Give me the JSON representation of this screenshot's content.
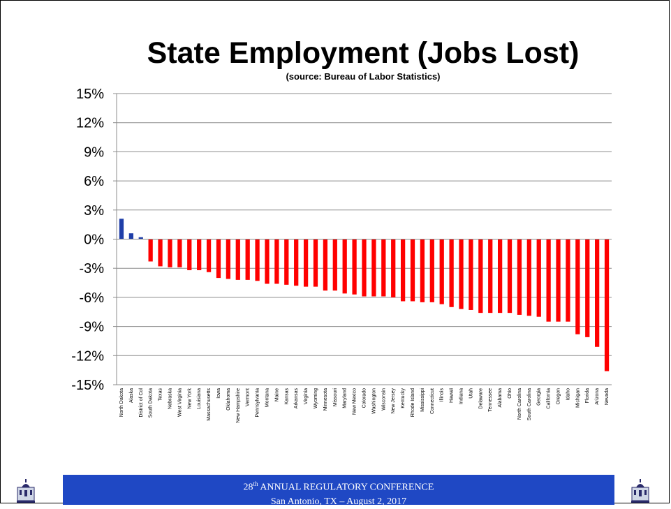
{
  "slide": {
    "title": "State Employment (Jobs Lost)",
    "subtitle": "(source: Bureau of Labor Statistics)"
  },
  "footer": {
    "ordinal_number": "28",
    "ordinal_suffix": "th",
    "line1_rest": " ANNUAL REGULATORY CONFERENCE",
    "line2": "San Antonio, TX – August 2, 2017"
  },
  "colors": {
    "positive_bar": "#1f3ea8",
    "negative_bar": "#ff0000",
    "footer_background": "#1f48c4"
  },
  "chart_data": {
    "type": "bar",
    "ylim": [
      -15,
      15
    ],
    "yticks": [
      15,
      12,
      9,
      6,
      3,
      0,
      -3,
      -6,
      -9,
      -12,
      -15
    ],
    "ytick_labels": [
      "15%",
      "12%",
      "9%",
      "6%",
      "3%",
      "0%",
      "-3%",
      "-6%",
      "-9%",
      "-12%",
      "-15%"
    ],
    "grid": true,
    "categories": [
      "North Dakota",
      "Alaska",
      "District of Col",
      "South Dakota",
      "Texas",
      "Nebraska",
      "West Virginia",
      "New York",
      "Louisiana",
      "Massachusetts",
      "Iowa",
      "Oklahoma",
      "New Hampshire",
      "Vermont",
      "Pennsylvania",
      "Montana",
      "Maine",
      "Kansas",
      "Arkansas",
      "Virginia",
      "Wyoming",
      "Minnesota",
      "Missouri",
      "Maryland",
      "New Mexico",
      "Colorado",
      "Washington",
      "Wisconsin",
      "New Jersey",
      "Kentucky",
      "Rhode Island",
      "Mississippi",
      "Connecticut",
      "Illinois",
      "Hawaii",
      "Indiana",
      "Utah",
      "Delaware",
      "Tennessee",
      "Alabama",
      "Ohio",
      "North Carolina",
      "South Carolina",
      "Georgia",
      "California",
      "Oregon",
      "Idaho",
      "Michigan",
      "Florida",
      "Arizona",
      "Nevada"
    ],
    "values": [
      2.1,
      0.6,
      0.2,
      -2.3,
      -2.8,
      -2.9,
      -2.9,
      -3.2,
      -3.2,
      -3.4,
      -4.0,
      -4.1,
      -4.2,
      -4.2,
      -4.3,
      -4.6,
      -4.6,
      -4.7,
      -4.8,
      -4.9,
      -4.9,
      -5.3,
      -5.3,
      -5.6,
      -5.7,
      -5.9,
      -5.9,
      -5.9,
      -6.0,
      -6.4,
      -6.4,
      -6.5,
      -6.5,
      -6.7,
      -7.0,
      -7.2,
      -7.3,
      -7.6,
      -7.6,
      -7.6,
      -7.6,
      -7.8,
      -7.9,
      -8.0,
      -8.5,
      -8.5,
      -8.5,
      -9.8,
      -10.1,
      -11.1,
      -13.6
    ]
  }
}
